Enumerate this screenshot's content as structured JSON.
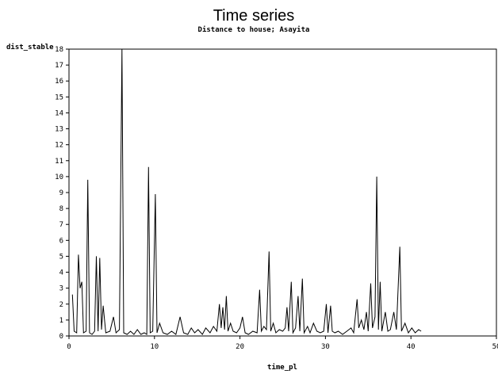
{
  "chart_data": {
    "type": "line",
    "title": "Time series",
    "subtitle": "Distance to house; Asayita",
    "xlabel": "time_pl",
    "ylabel": "dist_stable",
    "xlim": [
      0,
      50
    ],
    "ylim": [
      0,
      18
    ],
    "x_ticks": [
      0,
      10,
      20,
      30,
      40,
      50
    ],
    "y_ticks": [
      0,
      1,
      2,
      3,
      4,
      5,
      6,
      7,
      8,
      9,
      10,
      11,
      12,
      13,
      14,
      15,
      16,
      17,
      18
    ],
    "grid": false,
    "series": [
      {
        "values": [
          [
            0.4,
            2.6
          ],
          [
            0.6,
            0.3
          ],
          [
            0.9,
            0.2
          ],
          [
            1.1,
            5.1
          ],
          [
            1.3,
            3.0
          ],
          [
            1.5,
            3.4
          ],
          [
            1.7,
            0.2
          ],
          [
            2.0,
            0.3
          ],
          [
            2.2,
            9.8
          ],
          [
            2.4,
            0.2
          ],
          [
            2.7,
            0.1
          ],
          [
            3.0,
            0.3
          ],
          [
            3.2,
            5.0
          ],
          [
            3.4,
            0.3
          ],
          [
            3.6,
            4.9
          ],
          [
            3.8,
            0.4
          ],
          [
            4.0,
            1.9
          ],
          [
            4.3,
            0.2
          ],
          [
            4.8,
            0.3
          ],
          [
            5.2,
            1.2
          ],
          [
            5.5,
            0.2
          ],
          [
            5.9,
            0.4
          ],
          [
            6.2,
            18.0
          ],
          [
            6.4,
            0.2
          ],
          [
            6.8,
            0.1
          ],
          [
            7.2,
            0.3
          ],
          [
            7.6,
            0.1
          ],
          [
            8.0,
            0.4
          ],
          [
            8.4,
            0.1
          ],
          [
            8.8,
            0.2
          ],
          [
            9.1,
            0.1
          ],
          [
            9.3,
            10.6
          ],
          [
            9.5,
            0.2
          ],
          [
            9.8,
            0.3
          ],
          [
            10.1,
            8.9
          ],
          [
            10.3,
            0.2
          ],
          [
            10.6,
            0.8
          ],
          [
            11.0,
            0.2
          ],
          [
            11.5,
            0.1
          ],
          [
            12.0,
            0.3
          ],
          [
            12.5,
            0.1
          ],
          [
            13.0,
            1.2
          ],
          [
            13.4,
            0.2
          ],
          [
            13.9,
            0.1
          ],
          [
            14.3,
            0.5
          ],
          [
            14.7,
            0.2
          ],
          [
            15.1,
            0.4
          ],
          [
            15.6,
            0.1
          ],
          [
            16.0,
            0.5
          ],
          [
            16.5,
            0.2
          ],
          [
            16.9,
            0.6
          ],
          [
            17.3,
            0.3
          ],
          [
            17.6,
            2.0
          ],
          [
            17.8,
            0.5
          ],
          [
            18.0,
            1.8
          ],
          [
            18.2,
            0.4
          ],
          [
            18.4,
            2.5
          ],
          [
            18.6,
            0.3
          ],
          [
            18.9,
            0.8
          ],
          [
            19.2,
            0.3
          ],
          [
            19.6,
            0.2
          ],
          [
            20.0,
            0.5
          ],
          [
            20.3,
            1.2
          ],
          [
            20.6,
            0.2
          ],
          [
            21.0,
            0.1
          ],
          [
            21.5,
            0.3
          ],
          [
            22.0,
            0.2
          ],
          [
            22.3,
            2.9
          ],
          [
            22.5,
            0.3
          ],
          [
            22.8,
            0.6
          ],
          [
            23.1,
            0.4
          ],
          [
            23.4,
            5.3
          ],
          [
            23.6,
            0.3
          ],
          [
            23.9,
            0.8
          ],
          [
            24.2,
            0.2
          ],
          [
            24.6,
            0.4
          ],
          [
            25.0,
            0.3
          ],
          [
            25.3,
            0.5
          ],
          [
            25.5,
            1.8
          ],
          [
            25.7,
            0.3
          ],
          [
            26.0,
            3.4
          ],
          [
            26.2,
            0.2
          ],
          [
            26.5,
            0.5
          ],
          [
            26.8,
            2.5
          ],
          [
            27.0,
            0.3
          ],
          [
            27.3,
            3.6
          ],
          [
            27.5,
            0.2
          ],
          [
            27.9,
            0.6
          ],
          [
            28.2,
            0.2
          ],
          [
            28.6,
            0.8
          ],
          [
            29.0,
            0.3
          ],
          [
            29.4,
            0.2
          ],
          [
            29.8,
            0.3
          ],
          [
            30.1,
            2.0
          ],
          [
            30.3,
            0.2
          ],
          [
            30.6,
            1.9
          ],
          [
            30.8,
            0.3
          ],
          [
            31.1,
            0.2
          ],
          [
            31.5,
            0.3
          ],
          [
            32.0,
            0.1
          ],
          [
            32.5,
            0.3
          ],
          [
            33.0,
            0.5
          ],
          [
            33.3,
            0.2
          ],
          [
            33.7,
            2.3
          ],
          [
            33.9,
            0.5
          ],
          [
            34.2,
            1.0
          ],
          [
            34.5,
            0.4
          ],
          [
            34.8,
            1.5
          ],
          [
            35.0,
            0.3
          ],
          [
            35.3,
            3.3
          ],
          [
            35.5,
            0.5
          ],
          [
            35.8,
            1.2
          ],
          [
            36.0,
            10.0
          ],
          [
            36.2,
            0.4
          ],
          [
            36.4,
            3.4
          ],
          [
            36.6,
            0.3
          ],
          [
            37.0,
            1.5
          ],
          [
            37.3,
            0.3
          ],
          [
            37.6,
            0.4
          ],
          [
            38.0,
            1.5
          ],
          [
            38.3,
            0.4
          ],
          [
            38.7,
            5.6
          ],
          [
            38.9,
            0.3
          ],
          [
            39.3,
            0.8
          ],
          [
            39.7,
            0.2
          ],
          [
            40.1,
            0.5
          ],
          [
            40.5,
            0.2
          ],
          [
            40.9,
            0.4
          ],
          [
            41.2,
            0.3
          ]
        ]
      }
    ]
  }
}
